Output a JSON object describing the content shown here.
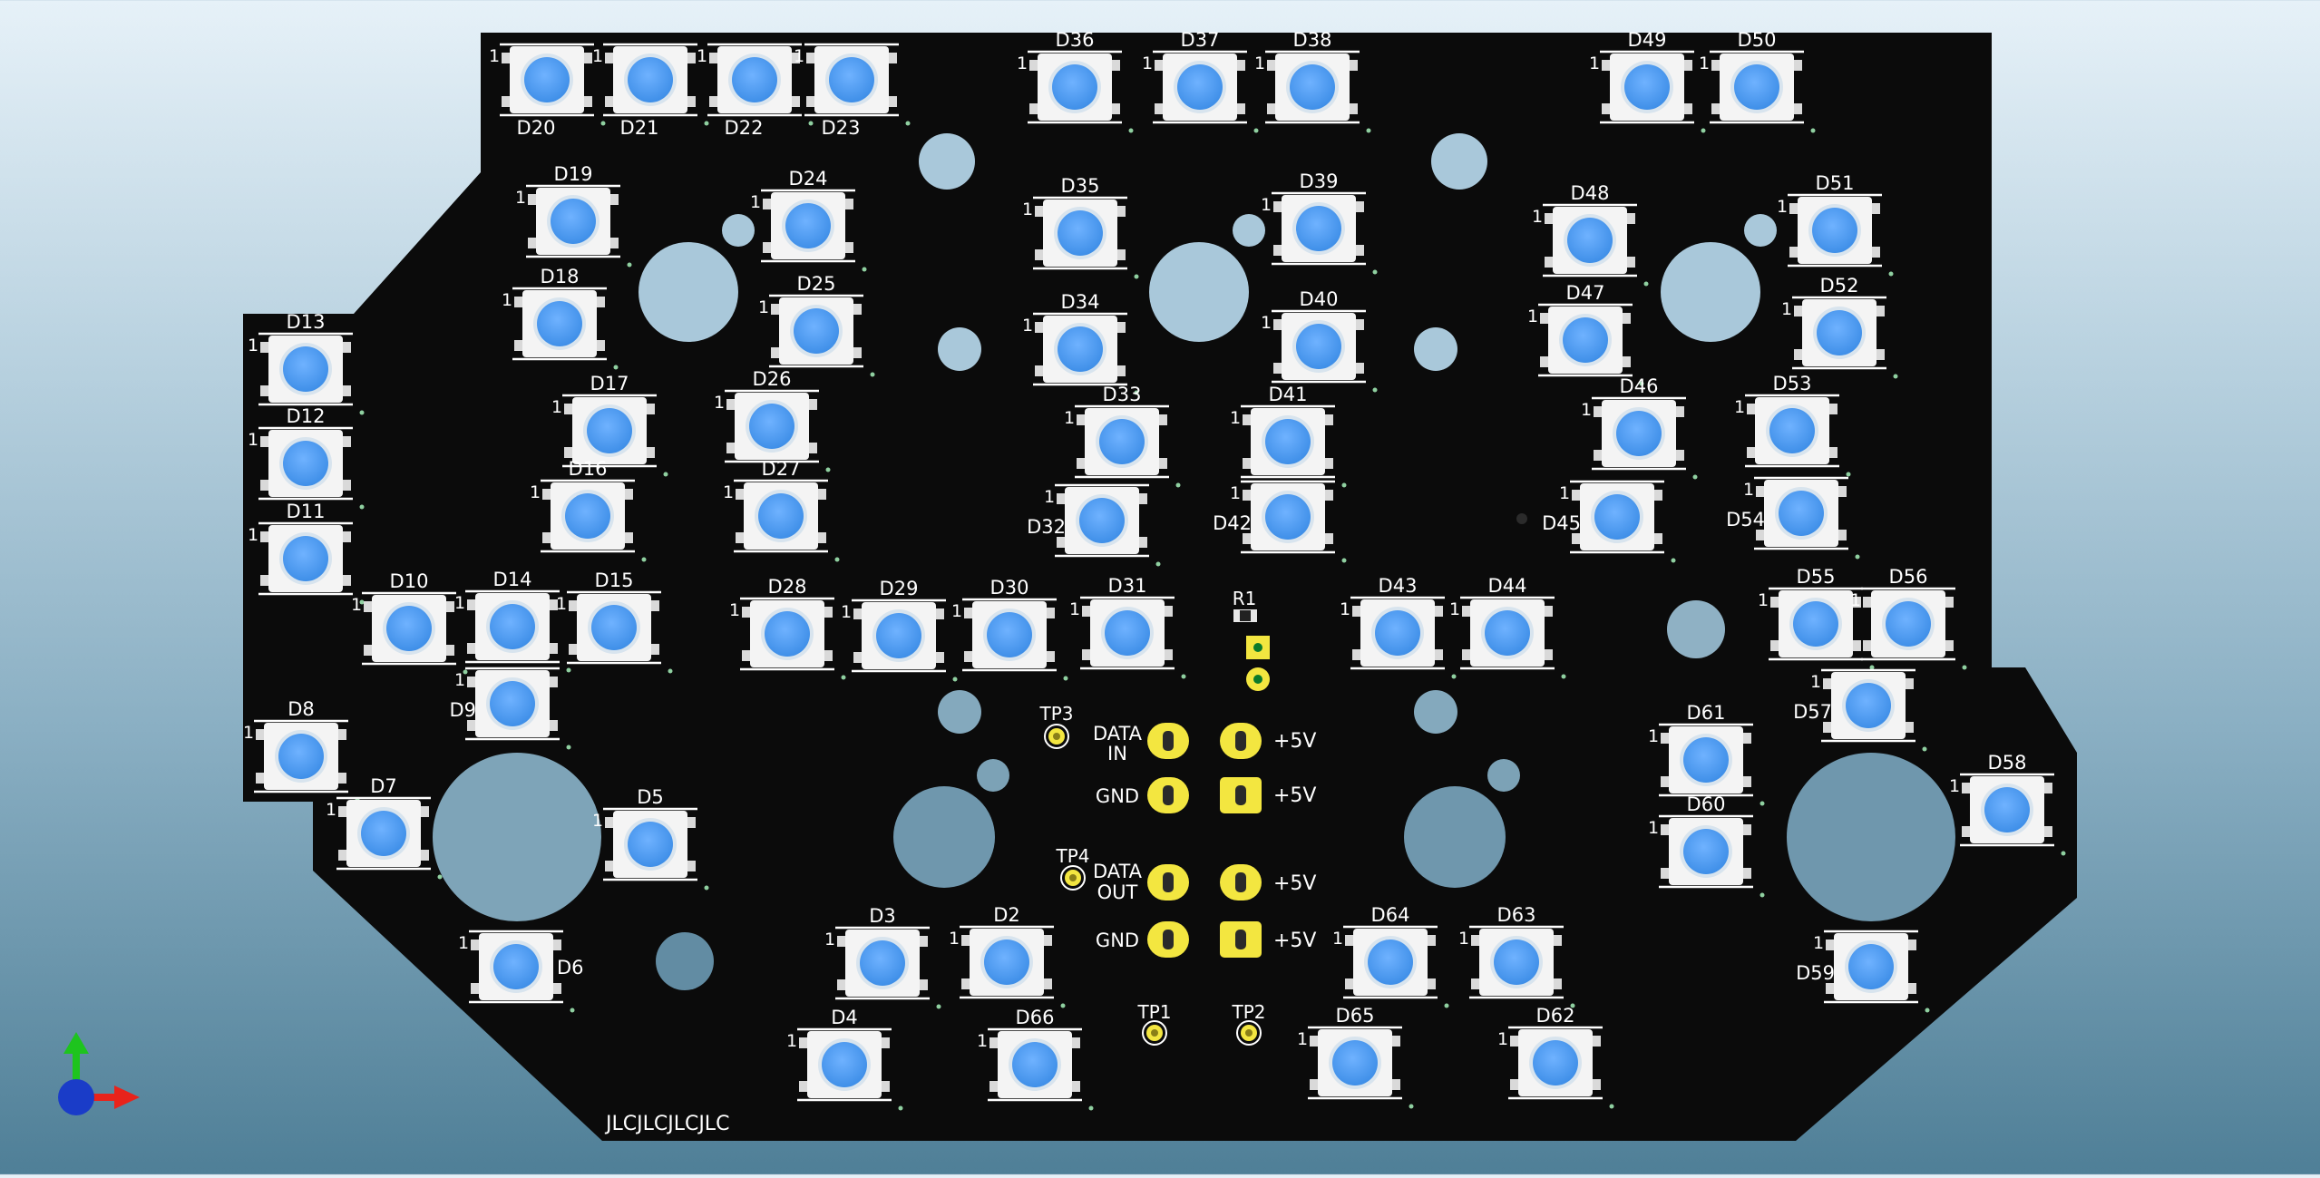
{
  "viewer": {
    "board_text": "JLCJLCJLCJLC",
    "background_colors": [
      "#e6f1f8",
      "#4f7f97"
    ],
    "board_color": "#0b0b0b",
    "led_color": "#4b9bf0",
    "pad_color": "#f3e640"
  },
  "leds": [
    {
      "ref": "D20",
      "col": 603,
      "row": 88
    },
    {
      "ref": "D21",
      "col": 717,
      "row": 88
    },
    {
      "ref": "D22",
      "col": 832,
      "row": 88
    },
    {
      "ref": "D23",
      "col": 939,
      "row": 88
    },
    {
      "ref": "D36",
      "col": 1185,
      "row": 96
    },
    {
      "ref": "D37",
      "col": 1323,
      "row": 96
    },
    {
      "ref": "D38",
      "col": 1447,
      "row": 96
    },
    {
      "ref": "D49",
      "col": 1816,
      "row": 96
    },
    {
      "ref": "D50",
      "col": 1937,
      "row": 96
    },
    {
      "ref": "D19",
      "col": 632,
      "row": 244
    },
    {
      "ref": "D24",
      "col": 891,
      "row": 249
    },
    {
      "ref": "D35",
      "col": 1191,
      "row": 257
    },
    {
      "ref": "D39",
      "col": 1454,
      "row": 252
    },
    {
      "ref": "D48",
      "col": 1753,
      "row": 265
    },
    {
      "ref": "D51",
      "col": 2023,
      "row": 254
    },
    {
      "ref": "D18",
      "col": 617,
      "row": 357
    },
    {
      "ref": "D25",
      "col": 900,
      "row": 365
    },
    {
      "ref": "D34",
      "col": 1191,
      "row": 385
    },
    {
      "ref": "D40",
      "col": 1454,
      "row": 382
    },
    {
      "ref": "D47",
      "col": 1748,
      "row": 375
    },
    {
      "ref": "D52",
      "col": 2028,
      "row": 367
    },
    {
      "ref": "D13",
      "col": 337,
      "row": 407
    },
    {
      "ref": "D12",
      "col": 337,
      "row": 511
    },
    {
      "ref": "D11",
      "col": 337,
      "row": 616
    },
    {
      "ref": "D17",
      "col": 672,
      "row": 475
    },
    {
      "ref": "D26",
      "col": 851,
      "row": 470
    },
    {
      "ref": "D33",
      "col": 1237,
      "row": 487
    },
    {
      "ref": "D41",
      "col": 1420,
      "row": 487
    },
    {
      "ref": "D46",
      "col": 1807,
      "row": 478
    },
    {
      "ref": "D53",
      "col": 1976,
      "row": 475
    },
    {
      "ref": "D16",
      "col": 648,
      "row": 569
    },
    {
      "ref": "D27",
      "col": 861,
      "row": 569
    },
    {
      "ref": "D32",
      "col": 1215,
      "row": 574
    },
    {
      "ref": "D42",
      "col": 1420,
      "row": 570
    },
    {
      "ref": "D45",
      "col": 1783,
      "row": 570
    },
    {
      "ref": "D54",
      "col": 1986,
      "row": 566
    },
    {
      "ref": "D10",
      "col": 451,
      "row": 693
    },
    {
      "ref": "D14",
      "col": 565,
      "row": 691
    },
    {
      "ref": "D15",
      "col": 677,
      "row": 692
    },
    {
      "ref": "D28",
      "col": 868,
      "row": 699
    },
    {
      "ref": "D29",
      "col": 991,
      "row": 701
    },
    {
      "ref": "D30",
      "col": 1113,
      "row": 700
    },
    {
      "ref": "D31",
      "col": 1243,
      "row": 698
    },
    {
      "ref": "D43",
      "col": 1541,
      "row": 698
    },
    {
      "ref": "D44",
      "col": 1662,
      "row": 698
    },
    {
      "ref": "D55",
      "col": 2002,
      "row": 688
    },
    {
      "ref": "D56",
      "col": 2104,
      "row": 688
    },
    {
      "ref": "D9",
      "col": 565,
      "row": 776
    },
    {
      "ref": "D8",
      "col": 332,
      "row": 834
    },
    {
      "ref": "D7",
      "col": 423,
      "row": 919
    },
    {
      "ref": "D5",
      "col": 717,
      "row": 931
    },
    {
      "ref": "D57",
      "col": 2060,
      "row": 778
    },
    {
      "ref": "D61",
      "col": 1881,
      "row": 838
    },
    {
      "ref": "D60",
      "col": 1881,
      "row": 939
    },
    {
      "ref": "D58",
      "col": 2213,
      "row": 893
    },
    {
      "ref": "D6",
      "col": 569,
      "row": 1066
    },
    {
      "ref": "D3",
      "col": 973,
      "row": 1062
    },
    {
      "ref": "D2",
      "col": 1110,
      "row": 1061
    },
    {
      "ref": "D64",
      "col": 1533,
      "row": 1061
    },
    {
      "ref": "D63",
      "col": 1672,
      "row": 1061
    },
    {
      "ref": "D59",
      "col": 2063,
      "row": 1066
    },
    {
      "ref": "D4",
      "col": 931,
      "row": 1174
    },
    {
      "ref": "D66",
      "col": 1141,
      "row": 1174
    },
    {
      "ref": "D65",
      "col": 1494,
      "row": 1172
    },
    {
      "ref": "D62",
      "col": 1715,
      "row": 1172
    }
  ],
  "connector": {
    "rows": [
      {
        "left": "DATA",
        "left2": "IN",
        "right": "+5V"
      },
      {
        "left": "GND",
        "left2": "",
        "right": "+5V"
      },
      {
        "left": "DATA",
        "left2": "OUT",
        "right": "+5V"
      },
      {
        "left": "GND",
        "left2": "",
        "right": "+5V"
      }
    ]
  },
  "test_points": [
    {
      "ref": "TP3"
    },
    {
      "ref": "TP4"
    },
    {
      "ref": "TP1"
    },
    {
      "ref": "TP2"
    }
  ],
  "resistor": {
    "ref": "R1"
  },
  "pin1_mark": "1",
  "axes_icon": {
    "x_color": "#e8231b",
    "y_color": "#1ec41e",
    "z_color": "#1a3cc8"
  }
}
